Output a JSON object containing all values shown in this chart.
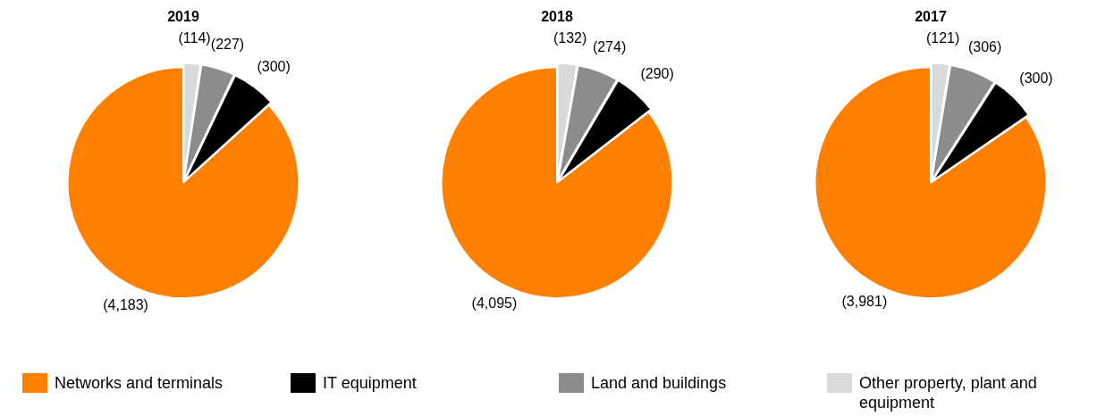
{
  "chart_data": [
    {
      "type": "pie",
      "title": "2019",
      "categories": [
        "Other property, plant and equipment",
        "Land and buildings",
        "IT equipment",
        "Networks and terminals"
      ],
      "values": [
        114,
        227,
        300,
        4183
      ],
      "value_labels": [
        "(114)",
        "(227)",
        "(300)",
        "(4,183)"
      ],
      "colors": [
        "#d9d9d9",
        "#8c8c8c",
        "#000000",
        "#ff7f00"
      ],
      "legend": "bottom"
    },
    {
      "type": "pie",
      "title": "2018",
      "categories": [
        null,
        null,
        null,
        null
      ],
      "values": [
        132,
        274,
        290,
        4095
      ],
      "value_labels": [
        "(132)",
        "(274)",
        "(290)",
        "(4,095)"
      ],
      "colors": [
        "#d9d9d9",
        "#8c8c8c",
        "#000000",
        "#ff7f00"
      ]
    },
    {
      "type": "pie",
      "title": "2017",
      "categories": [
        null,
        null,
        null,
        null
      ],
      "values": [
        121,
        306,
        300,
        3981
      ],
      "value_labels": [
        "(121)",
        "(306)",
        "(300)",
        "(3,981)"
      ],
      "colors": [
        "#d9d9d9",
        "#8c8c8c",
        "#000000",
        "#ff7f00"
      ]
    }
  ]
}
